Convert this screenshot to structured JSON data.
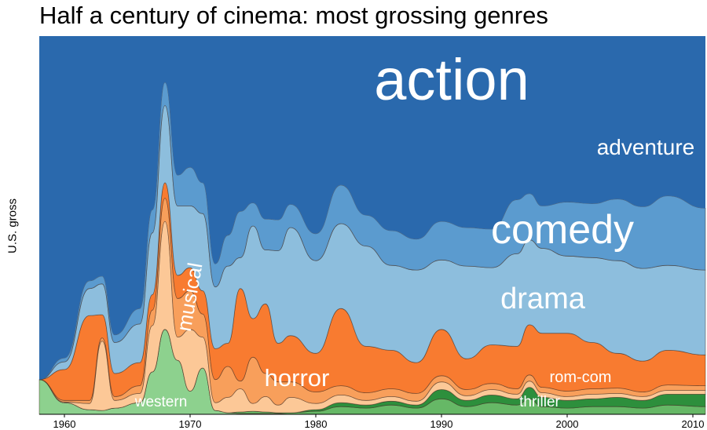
{
  "chart_data": {
    "type": "area",
    "subtype": "streamgraph",
    "title": "Half a century of cinema: most grossing genres",
    "xlabel": "",
    "ylabel": "U.S. gross",
    "xlim": [
      1958,
      2011
    ],
    "x_ticks": [
      "1960",
      "1970",
      "1980",
      "1990",
      "2000",
      "2010"
    ],
    "grid": false,
    "legend": "none",
    "x": [
      1958,
      1960,
      1962,
      1963,
      1964,
      1966,
      1967,
      1968,
      1969,
      1970,
      1971,
      1972,
      1973,
      1974,
      1975,
      1976,
      1977,
      1978,
      1980,
      1982,
      1984,
      1986,
      1988,
      1990,
      1992,
      1994,
      1996,
      1997,
      1998,
      2000,
      2002,
      2004,
      2006,
      2008,
      2011
    ],
    "series": [
      {
        "name": "western",
        "color": "#8dd18e",
        "values": [
          0.45,
          0.15,
          0.06,
          0.05,
          0.08,
          0.15,
          0.55,
          1.1,
          0.7,
          0.3,
          0.6,
          0.05,
          0.02,
          0.01,
          0.01,
          0.01,
          0.01,
          0,
          0,
          0,
          0,
          0,
          0,
          0,
          0,
          0,
          0,
          0,
          0,
          0,
          0,
          0,
          0,
          0,
          0
        ]
      },
      {
        "name": "thriller",
        "color": "#66b866",
        "values": [
          0,
          0,
          0,
          0,
          0,
          0,
          0,
          0,
          0,
          0,
          0,
          0,
          0,
          0.02,
          0.03,
          0.02,
          0.01,
          0.02,
          0.04,
          0.1,
          0.08,
          0.12,
          0.08,
          0.2,
          0.1,
          0.15,
          0.12,
          0.2,
          0.1,
          0.08,
          0.1,
          0.1,
          0.08,
          0.12,
          0.1
        ]
      },
      {
        "name": "rom-com",
        "color": "#2d8f3c",
        "values": [
          0,
          0,
          0,
          0,
          0,
          0,
          0,
          0,
          0,
          0,
          0,
          0,
          0,
          0,
          0,
          0,
          0,
          0,
          0.02,
          0.05,
          0.04,
          0.05,
          0.04,
          0.12,
          0.08,
          0.1,
          0.08,
          0.15,
          0.12,
          0.1,
          0.1,
          0.12,
          0.1,
          0.14,
          0.16
        ]
      },
      {
        "name": "horror",
        "color": "#fcc897",
        "values": [
          0,
          0.01,
          0.08,
          0.9,
          0.1,
          0.12,
          0.6,
          1.4,
          0.3,
          0.8,
          0.4,
          0.1,
          0.2,
          0.3,
          0.1,
          0.2,
          0.1,
          0.2,
          0.08,
          0.1,
          0.06,
          0.06,
          0.05,
          0.1,
          0.06,
          0.07,
          0.06,
          0.08,
          0.06,
          0.05,
          0.06,
          0.05,
          0.05,
          0.05,
          0.05
        ]
      },
      {
        "name": "musical",
        "color": "#f89f5b",
        "values": [
          0,
          0.02,
          0.04,
          0.04,
          0.05,
          0.1,
          0.2,
          0.3,
          0.5,
          0.5,
          0.3,
          0.3,
          0.4,
          0.1,
          0.6,
          0.3,
          0.3,
          0.2,
          0.15,
          0.12,
          0.1,
          0.1,
          0.1,
          0.08,
          0.08,
          0.08,
          0.07,
          0.08,
          0.07,
          0.07,
          0.07,
          0.07,
          0.06,
          0.07,
          0.06
        ]
      },
      {
        "name": "drama",
        "color": "#f87b30",
        "values": [
          0,
          0.4,
          1.1,
          0.3,
          0.3,
          0.3,
          0.2,
          0.2,
          0.3,
          0.3,
          0.3,
          0.4,
          0.3,
          1.2,
          0.5,
          0.9,
          0.5,
          0.6,
          0.5,
          1.0,
          0.6,
          0.5,
          0.4,
          0.6,
          0.4,
          0.5,
          0.55,
          0.65,
          0.7,
          0.75,
          0.6,
          0.45,
          0.4,
          0.45,
          0.4
        ]
      },
      {
        "name": "comedy",
        "color": "#8dbedd",
        "values": [
          0,
          0.1,
          0.35,
          0.4,
          0.4,
          0.5,
          0.8,
          1.0,
          0.9,
          0.8,
          1.0,
          0.8,
          1.0,
          0.4,
          1.2,
          0.7,
          1.2,
          1.4,
          1.2,
          1.1,
          1.3,
          1.1,
          1.2,
          0.9,
          1.2,
          1.0,
          1.2,
          1.1,
          1.1,
          1.0,
          1.1,
          1.2,
          1.2,
          1.1,
          1.1
        ]
      },
      {
        "name": "adventure",
        "color": "#5b9bcf",
        "values": [
          0,
          0.05,
          0.1,
          0.1,
          0.1,
          0.2,
          0.3,
          0.3,
          0.4,
          0.5,
          0.4,
          0.3,
          0.4,
          0.6,
          0.3,
          0.4,
          0.4,
          0.3,
          0.35,
          0.5,
          0.4,
          0.45,
          0.4,
          0.5,
          0.5,
          0.5,
          0.7,
          0.6,
          0.55,
          0.7,
          0.7,
          0.8,
          0.8,
          0.9,
          0.8
        ]
      },
      {
        "name": "action",
        "color": "#2a69ad",
        "values": [
          0,
          0.1,
          0.2,
          0.2,
          0.3,
          0.4,
          0.5,
          0.6,
          0.6,
          0.6,
          0.7,
          0.6,
          0.6,
          0.6,
          0.4,
          0.7,
          0.8,
          0.9,
          1.0,
          0.9,
          1.0,
          1.1,
          1.1,
          1.0,
          1.1,
          1.0,
          1.0,
          0.9,
          1.1,
          1.2,
          1.2,
          1.3,
          1.3,
          1.3,
          1.4
        ]
      }
    ],
    "annotations": [
      "action",
      "adventure",
      "comedy",
      "drama",
      "musical",
      "horror",
      "rom-com",
      "western",
      "thriller"
    ]
  }
}
